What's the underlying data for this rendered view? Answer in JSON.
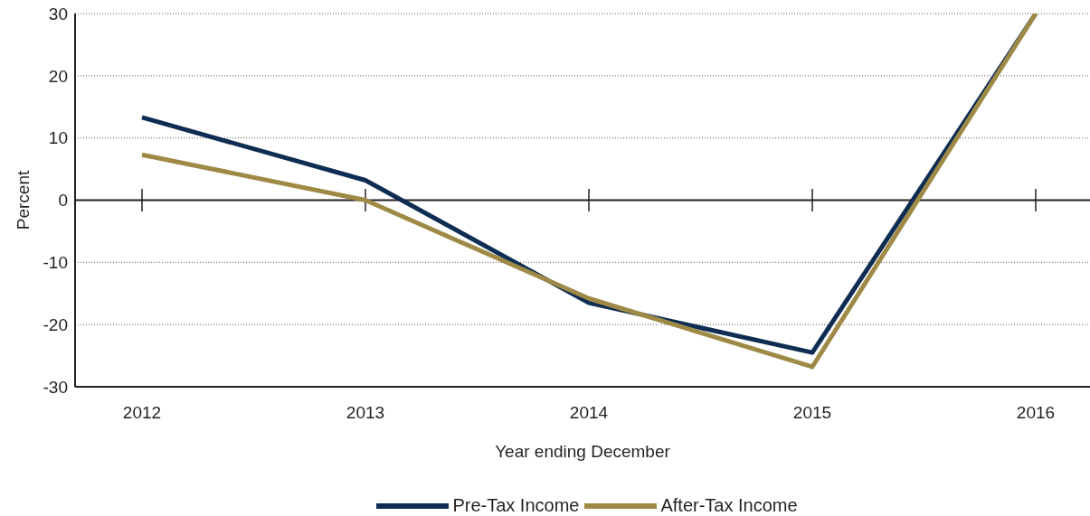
{
  "chart_data": {
    "type": "line",
    "xlabel": "Year ending December",
    "ylabel": "Percent",
    "categories": [
      "2012",
      "2013",
      "2014",
      "2015",
      "2016"
    ],
    "series": [
      {
        "name": "Pre-Tax Income",
        "color": "#0f2d52",
        "values": [
          13.3,
          3.2,
          -16.5,
          -24.5,
          30
        ]
      },
      {
        "name": "After-Tax Income",
        "color": "#9e8a46",
        "values": [
          7.3,
          0,
          -15.8,
          -26.8,
          30
        ]
      }
    ],
    "ylim": [
      -30,
      30
    ],
    "yticks": [
      -30,
      -20,
      -10,
      0,
      10,
      20,
      30
    ],
    "grid": "y",
    "legend": "bottom",
    "marker": "none",
    "line_style": "solid",
    "ref_lines": [
      {
        "axis": "y",
        "value": 0,
        "color": "#231f20"
      }
    ]
  }
}
